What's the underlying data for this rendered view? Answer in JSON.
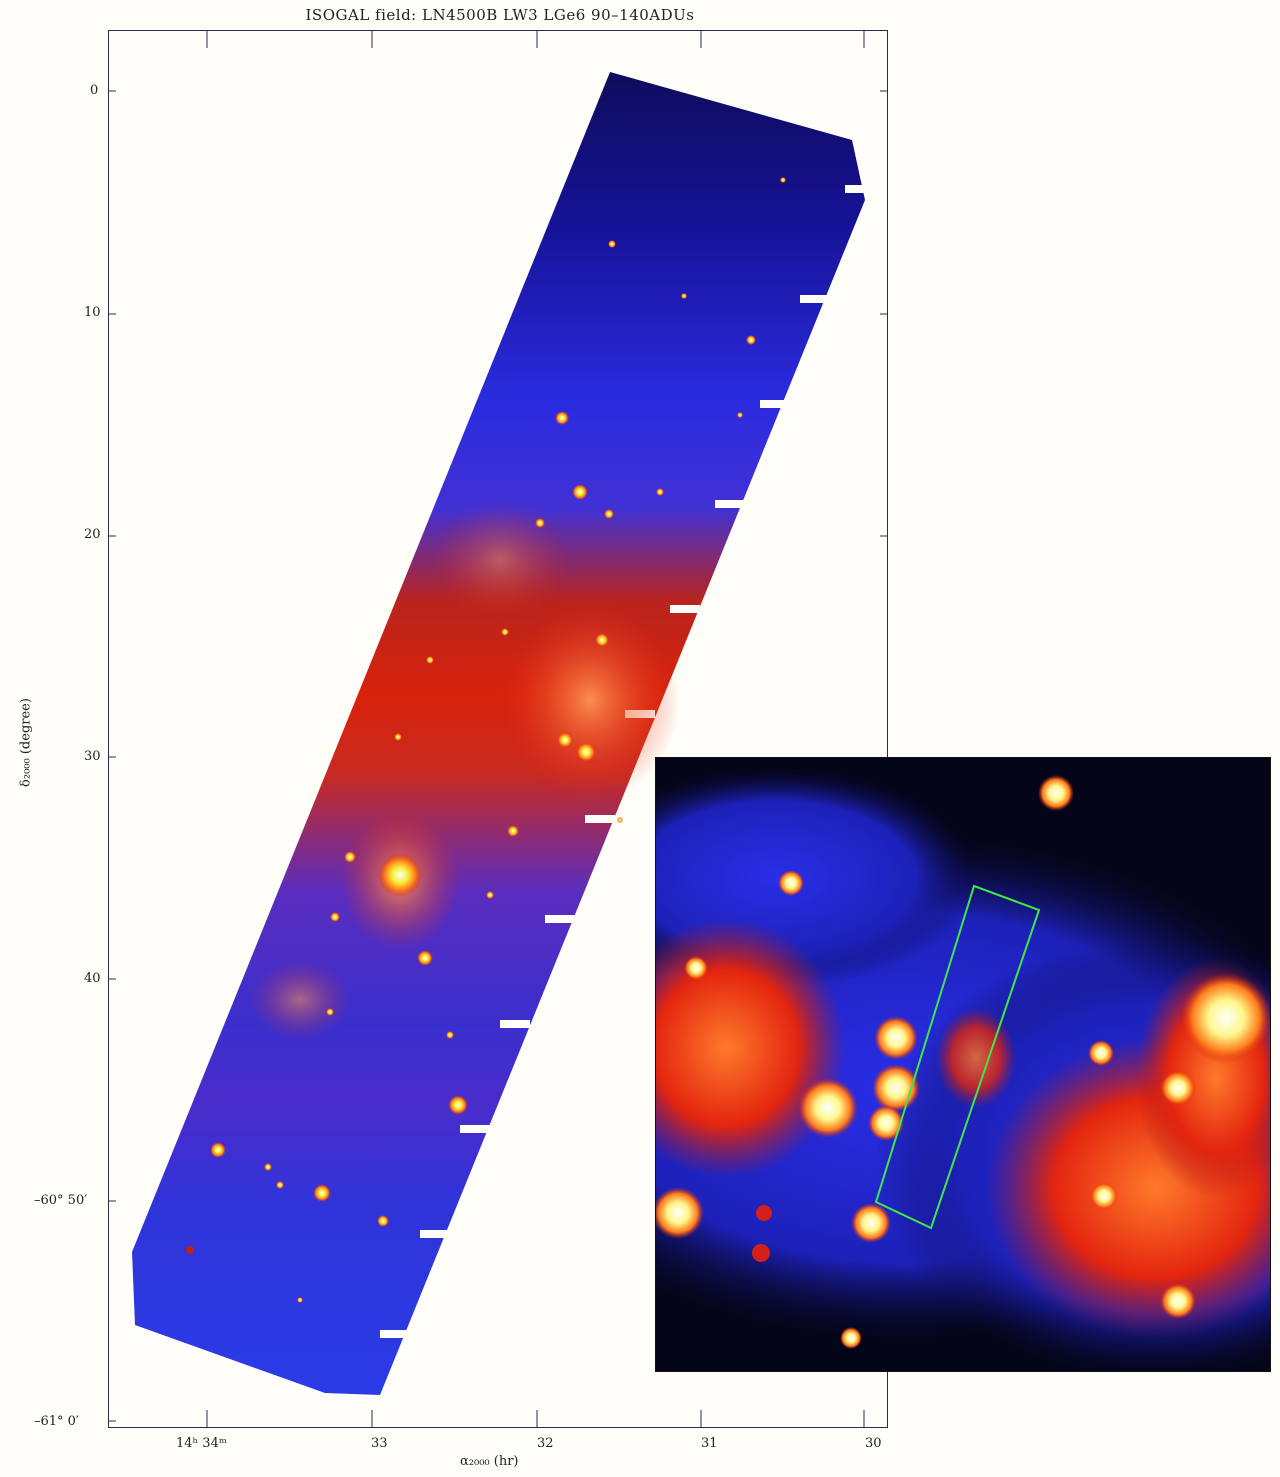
{
  "figure": {
    "title": "ISOGAL field: LN4500B  LW3 LGe6 90–140ADUs",
    "y_axis": {
      "label": "δ₂₀₀₀ (degree)",
      "tick_labels": [
        "0",
        "10",
        "20",
        "30",
        "40",
        "–60° 50′",
        "–61° 0′"
      ]
    },
    "x_axis": {
      "label": "α₂₀₀₀ (hr)",
      "tick_labels": [
        "14ʰ 34ᵐ",
        "33",
        "32",
        "31",
        "30"
      ]
    },
    "colors": {
      "background": "#fffef9",
      "axis": "#2a2a55",
      "map_blue": "#2b2ce0",
      "map_red": "#d8220c",
      "map_yellow": "#f6f03a",
      "inset_box": "#3ee84a"
    }
  }
}
